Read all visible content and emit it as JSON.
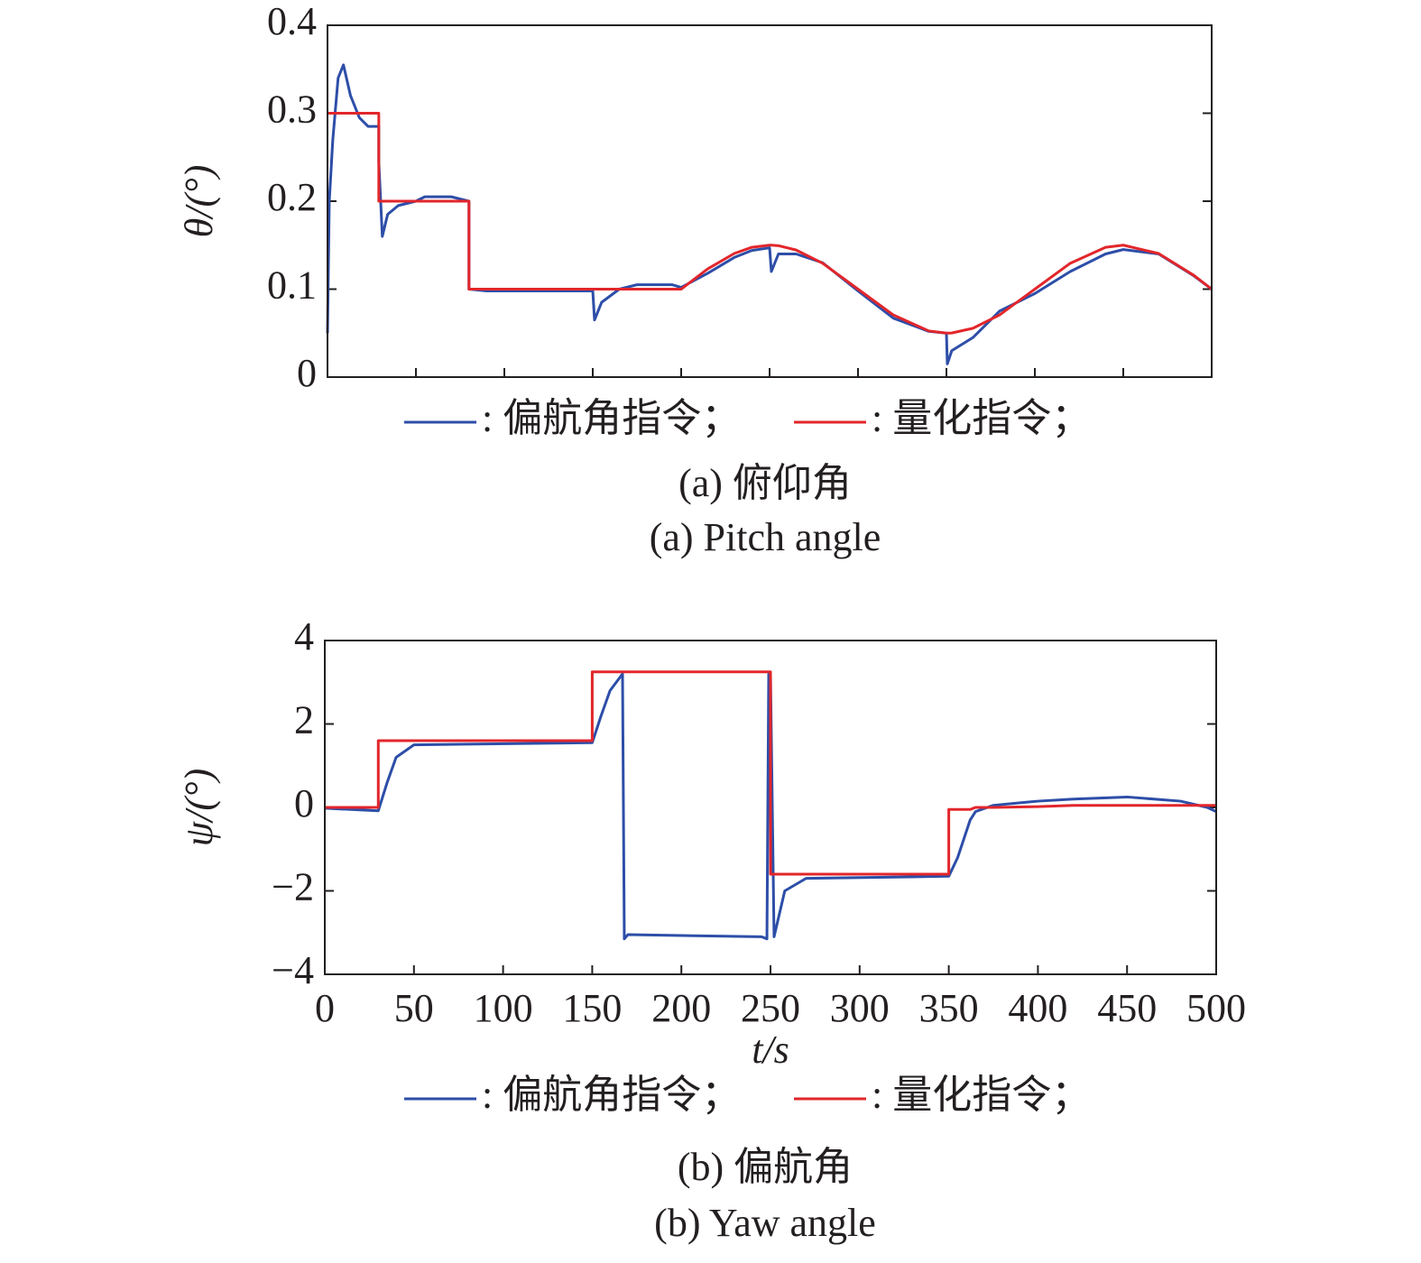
{
  "chart_data": [
    {
      "type": "line",
      "ylabel": "θ/(°)",
      "caption_cn": "(a) 俯仰角",
      "caption_en": "(a) Pitch angle",
      "xlim": [
        0,
        500
      ],
      "xticks": [
        0,
        50,
        100,
        150,
        200,
        250,
        300,
        350,
        400,
        450,
        500
      ],
      "x_tick_labels": false,
      "ylim": [
        0,
        0.4
      ],
      "yticks": [
        0,
        0.1,
        0.2,
        0.3,
        0.4
      ],
      "x": [
        0,
        1,
        3,
        6,
        9,
        13,
        18,
        23,
        29,
        29,
        31,
        34,
        40,
        50,
        55,
        70,
        80,
        80,
        90,
        150,
        151,
        155,
        165,
        175,
        195,
        200,
        215,
        230,
        240,
        250,
        251,
        255,
        265,
        280,
        300,
        320,
        340,
        350,
        350.5,
        353,
        365,
        380,
        400,
        420,
        440,
        450,
        470,
        490,
        500
      ],
      "series": [
        {
          "name": ": 偏航角指令；",
          "color": "#2d4ea8",
          "values": [
            0.05,
            0.2,
            0.27,
            0.34,
            0.355,
            0.32,
            0.295,
            0.285,
            0.285,
            0.245,
            0.16,
            0.185,
            0.195,
            0.2,
            0.205,
            0.205,
            0.2,
            0.1,
            0.098,
            0.098,
            0.065,
            0.085,
            0.1,
            0.105,
            0.105,
            0.102,
            0.118,
            0.136,
            0.144,
            0.147,
            0.12,
            0.14,
            0.14,
            0.13,
            0.098,
            0.067,
            0.052,
            0.05,
            0.015,
            0.03,
            0.045,
            0.075,
            0.095,
            0.12,
            0.14,
            0.145,
            0.14,
            0.115,
            0.1
          ]
        },
        {
          "name": ": 量化指令；",
          "color": "#e2262b",
          "values": [
            0.3,
            0.3,
            0.3,
            0.3,
            0.3,
            0.3,
            0.3,
            0.3,
            0.3,
            0.2,
            0.2,
            0.2,
            0.2,
            0.2,
            0.2,
            0.2,
            0.2,
            0.1,
            0.1,
            0.1,
            0.1,
            0.1,
            0.1,
            0.1,
            0.1,
            0.1,
            0.123,
            0.1405,
            0.1476,
            0.15,
            0.15,
            0.1494,
            0.1445,
            0.1294,
            0.1,
            0.0706,
            0.0525,
            0.05,
            0.05,
            0.0501,
            0.0555,
            0.0706,
            0.1,
            0.1294,
            0.1476,
            0.15,
            0.1405,
            0.1156,
            0.1
          ]
        }
      ]
    },
    {
      "type": "line",
      "ylabel": "ψ/(°)",
      "xlabel": "t/s",
      "caption_cn": "(b) 偏航角",
      "caption_en": "(b) Yaw angle",
      "xlim": [
        0,
        500
      ],
      "xticks": [
        0,
        50,
        100,
        150,
        200,
        250,
        300,
        350,
        400,
        450,
        500
      ],
      "x_tick_labels": true,
      "ylim": [
        -4,
        4
      ],
      "yticks": [
        {
          "value": -4,
          "label": "−4"
        },
        {
          "value": -2,
          "label": "−2"
        },
        0,
        2,
        4
      ],
      "x": [
        0,
        30,
        30,
        35,
        40,
        50,
        150,
        150,
        155,
        160,
        167,
        168,
        170,
        245,
        248,
        249,
        250,
        250,
        252,
        258,
        270,
        350,
        350,
        355,
        362,
        365,
        375,
        400,
        420,
        450,
        480,
        495,
        500
      ],
      "series": [
        {
          "name": ": 偏航角指令；",
          "color": "#2d4ea8",
          "values": [
            -0.02,
            -0.08,
            -0.08,
            0.6,
            1.2,
            1.5,
            1.55,
            1.55,
            2.2,
            2.8,
            3.2,
            -3.15,
            -3.05,
            -3.1,
            -3.15,
            3.2,
            3.2,
            3.2,
            -3.1,
            -2.0,
            -1.7,
            -1.65,
            -1.65,
            -1.2,
            -0.3,
            -0.1,
            0.05,
            0.15,
            0.2,
            0.25,
            0.15,
            0,
            -0.1
          ]
        },
        {
          "name": ": 量化指令；",
          "color": "#e2262b",
          "values": [
            0,
            0,
            1.6,
            1.6,
            1.6,
            1.6,
            1.6,
            3.25,
            3.25,
            3.25,
            3.25,
            3.25,
            3.25,
            3.25,
            3.25,
            3.25,
            3.25,
            -1.6,
            -1.6,
            -1.6,
            -1.6,
            -1.6,
            -0.05,
            -0.05,
            -0.05,
            0,
            0,
            0.02,
            0.05,
            0.05,
            0.05,
            0.05,
            0.05
          ]
        }
      ]
    }
  ]
}
